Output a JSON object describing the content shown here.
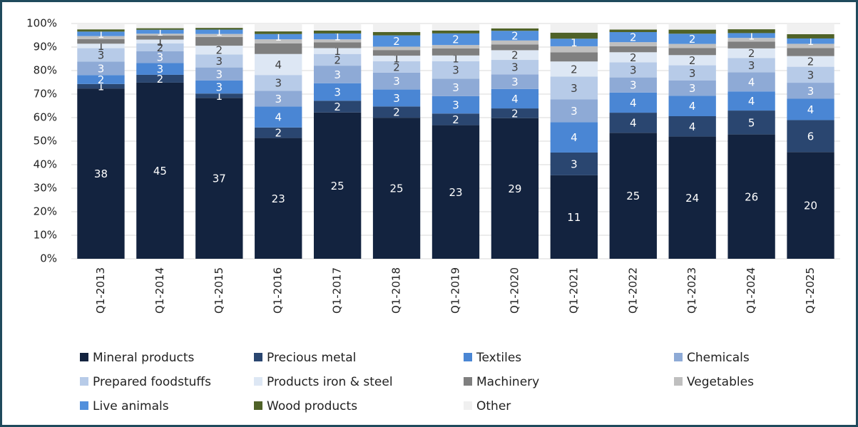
{
  "chart_data": {
    "type": "bar",
    "stacking": "percent",
    "categories": [
      "Q1-2013",
      "Q1-2014",
      "Q1-2015",
      "Q1-2016",
      "Q1-2017",
      "Q1-2018",
      "Q1-2019",
      "Q1-2020",
      "Q1-2021",
      "Q1-2022",
      "Q1-2023",
      "Q1-2024",
      "Q1-2025"
    ],
    "ylim": [
      0,
      100
    ],
    "yticks": [
      {
        "value": 0,
        "label": "0%"
      },
      {
        "value": 10,
        "label": "10%"
      },
      {
        "value": 20,
        "label": "20%"
      },
      {
        "value": 30,
        "label": "30%"
      },
      {
        "value": 40,
        "label": "40%"
      },
      {
        "value": 50,
        "label": "50%"
      },
      {
        "value": 60,
        "label": "60%"
      },
      {
        "value": 70,
        "label": "70%"
      },
      {
        "value": 80,
        "label": "80%"
      },
      {
        "value": 90,
        "label": "90%"
      },
      {
        "value": 100,
        "label": "100%"
      }
    ],
    "grid": true,
    "legend": "bottom",
    "series": [
      {
        "name": "Mineral products",
        "color": "#13233f",
        "show_labels": true,
        "values": [
          38,
          45,
          37,
          23,
          25,
          25,
          23,
          29,
          11,
          25,
          24,
          26,
          20
        ]
      },
      {
        "name": "Precious metal",
        "color": "#2a4670",
        "show_labels": true,
        "values": [
          1,
          2,
          1,
          2,
          2,
          2,
          2,
          2,
          3,
          4,
          4,
          5,
          6
        ]
      },
      {
        "name": "Textiles",
        "color": "#4a86d4",
        "show_labels": true,
        "values": [
          2,
          3,
          3,
          4,
          3,
          3,
          3,
          4,
          4,
          4,
          4,
          4,
          4
        ]
      },
      {
        "name": "Chemicals",
        "color": "#8eaad6",
        "show_labels": true,
        "values": [
          3,
          3,
          3,
          3,
          3,
          3,
          3,
          3,
          3,
          3,
          3,
          4,
          3
        ]
      },
      {
        "name": "Prepared foodstuffs",
        "color": "#b7cbe8",
        "show_labels": true,
        "values": [
          3,
          2,
          3,
          3,
          2,
          2,
          3,
          3,
          3,
          3,
          3,
          3,
          3
        ]
      },
      {
        "name": "Products iron & steel",
        "color": "#dde7f4",
        "show_labels": true,
        "values": [
          1,
          1,
          2,
          4,
          1,
          1,
          1,
          2,
          2,
          2,
          2,
          2,
          2
        ]
      },
      {
        "name": "Machinery",
        "color": "#7f7f7f",
        "show_labels": false,
        "values": [
          1,
          1,
          2,
          2,
          1,
          1,
          1.2,
          1.2,
          1.2,
          1.2,
          1.4,
          1.4,
          1.5
        ]
      },
      {
        "name": "Vegetables",
        "color": "#bfbfbf",
        "show_labels": false,
        "values": [
          0.7,
          0.5,
          0.7,
          0.8,
          0.5,
          0.6,
          0.6,
          0.8,
          0.8,
          0.8,
          0.8,
          0.8,
          0.8
        ]
      },
      {
        "name": "Live animals",
        "color": "#5290dc",
        "show_labels": true,
        "values": [
          1,
          1,
          1,
          1,
          1,
          2,
          2,
          2,
          1,
          2,
          2,
          1,
          1
        ]
      },
      {
        "name": "Wood products",
        "color": "#4f6228",
        "show_labels": false,
        "values": [
          0.5,
          0.4,
          0.4,
          0.5,
          0.5,
          0.6,
          0.5,
          0.5,
          0.8,
          0.5,
          0.8,
          0.8,
          0.8
        ]
      },
      {
        "name": "Other",
        "color": "#f0f0f0",
        "show_labels": false,
        "values": [
          1.3,
          1.2,
          1,
          1.5,
          1.2,
          1.5,
          1.2,
          1,
          1.2,
          1.2,
          1.2,
          1.2,
          2
        ]
      }
    ]
  }
}
